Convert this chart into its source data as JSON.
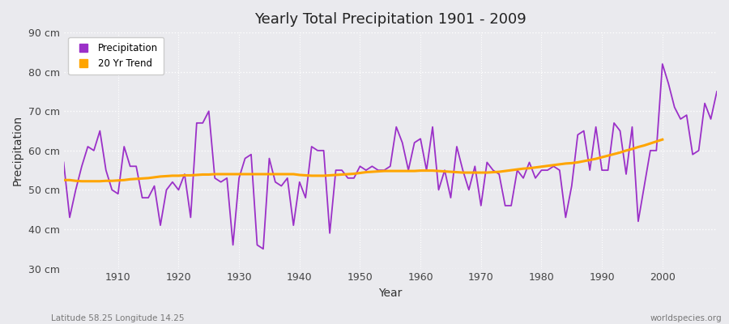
{
  "title": "Yearly Total Precipitation 1901 - 2009",
  "xlabel": "Year",
  "ylabel": "Precipitation",
  "footnote_left": "Latitude 58.25 Longitude 14.25",
  "footnote_right": "worldspecies.org",
  "precip_color": "#9B30C8",
  "trend_color": "#FFA500",
  "bg_color": "#EAEAEE",
  "plot_bg_color": "#EAEAEE",
  "ylim": [
    30,
    90
  ],
  "xlim": [
    1901,
    2009
  ],
  "yticks": [
    30,
    40,
    50,
    60,
    70,
    80,
    90
  ],
  "ytick_labels": [
    "30 cm",
    "40 cm",
    "50 cm",
    "60 cm",
    "70 cm",
    "80 cm",
    "90 cm"
  ],
  "xticks": [
    1910,
    1920,
    1930,
    1940,
    1950,
    1960,
    1970,
    1980,
    1990,
    2000
  ],
  "years": [
    1901,
    1902,
    1903,
    1904,
    1905,
    1906,
    1907,
    1908,
    1909,
    1910,
    1911,
    1912,
    1913,
    1914,
    1915,
    1916,
    1917,
    1918,
    1919,
    1920,
    1921,
    1922,
    1923,
    1924,
    1925,
    1926,
    1927,
    1928,
    1929,
    1930,
    1931,
    1932,
    1933,
    1934,
    1935,
    1936,
    1937,
    1938,
    1939,
    1940,
    1941,
    1942,
    1943,
    1944,
    1945,
    1946,
    1947,
    1948,
    1949,
    1950,
    1951,
    1952,
    1953,
    1954,
    1955,
    1956,
    1957,
    1958,
    1959,
    1960,
    1961,
    1962,
    1963,
    1964,
    1965,
    1966,
    1967,
    1968,
    1969,
    1970,
    1971,
    1972,
    1973,
    1974,
    1975,
    1976,
    1977,
    1978,
    1979,
    1980,
    1981,
    1982,
    1983,
    1984,
    1985,
    1986,
    1987,
    1988,
    1989,
    1990,
    1991,
    1992,
    1993,
    1994,
    1995,
    1996,
    1997,
    1998,
    1999,
    2000,
    2001,
    2002,
    2003,
    2004,
    2005,
    2006,
    2007,
    2008,
    2009
  ],
  "precip": [
    57,
    43,
    50,
    56,
    61,
    60,
    65,
    55,
    50,
    49,
    61,
    56,
    56,
    48,
    48,
    51,
    41,
    50,
    52,
    50,
    54,
    43,
    67,
    67,
    70,
    53,
    52,
    53,
    36,
    53,
    58,
    59,
    36,
    35,
    58,
    52,
    51,
    53,
    41,
    52,
    48,
    61,
    60,
    60,
    39,
    55,
    55,
    53,
    53,
    56,
    55,
    56,
    55,
    55,
    56,
    66,
    62,
    55,
    62,
    63,
    55,
    66,
    50,
    55,
    48,
    61,
    55,
    50,
    56,
    46,
    57,
    55,
    54,
    46,
    46,
    55,
    53,
    57,
    53,
    55,
    55,
    56,
    55,
    43,
    51,
    64,
    65,
    55,
    66,
    55,
    55,
    67,
    65,
    54,
    66,
    42,
    51,
    60,
    60,
    82,
    77,
    71,
    68,
    69,
    59,
    60,
    72,
    68,
    75
  ],
  "trend": [
    52.5,
    52.5,
    52.3,
    52.2,
    52.2,
    52.2,
    52.2,
    52.3,
    52.3,
    52.4,
    52.5,
    52.7,
    52.8,
    52.9,
    53.0,
    53.2,
    53.4,
    53.5,
    53.6,
    53.6,
    53.7,
    53.7,
    53.8,
    53.9,
    53.9,
    54.0,
    54.0,
    54.0,
    54.0,
    54.0,
    54.0,
    54.0,
    54.0,
    54.0,
    54.0,
    54.0,
    54.0,
    54.0,
    54.0,
    53.8,
    53.7,
    53.6,
    53.6,
    53.6,
    53.7,
    53.8,
    53.9,
    54.0,
    54.1,
    54.3,
    54.5,
    54.6,
    54.7,
    54.8,
    54.8,
    54.8,
    54.8,
    54.8,
    54.8,
    54.9,
    54.9,
    54.9,
    54.8,
    54.7,
    54.6,
    54.5,
    54.4,
    54.4,
    54.4,
    54.4,
    54.4,
    54.5,
    54.6,
    54.8,
    55.0,
    55.2,
    55.4,
    55.5,
    55.7,
    55.9,
    56.1,
    56.3,
    56.5,
    56.7,
    56.8,
    57.0,
    57.3,
    57.6,
    57.9,
    58.3,
    58.7,
    59.1,
    59.5,
    60.0,
    60.4,
    60.9,
    61.3,
    61.8,
    62.3,
    62.8,
    null,
    null,
    null,
    null,
    null,
    null,
    null,
    null,
    null
  ]
}
